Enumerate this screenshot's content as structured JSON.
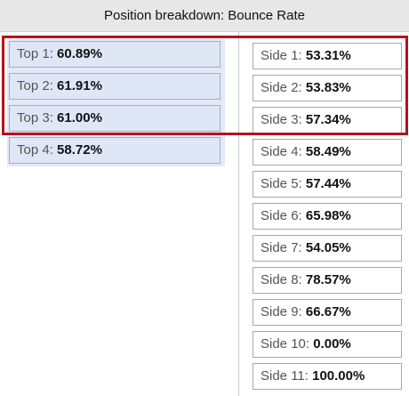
{
  "header": {
    "title": "Position breakdown: Bounce Rate"
  },
  "top_positions": [
    {
      "label": "Top 1:",
      "value": "60.89%"
    },
    {
      "label": "Top 2:",
      "value": "61.91%"
    },
    {
      "label": "Top 3:",
      "value": "61.00%"
    },
    {
      "label": "Top 4:",
      "value": "58.72%"
    }
  ],
  "side_positions": [
    {
      "label": "Side 1:",
      "value": "53.31%"
    },
    {
      "label": "Side 2:",
      "value": "53.83%"
    },
    {
      "label": "Side 3:",
      "value": "57.34%"
    },
    {
      "label": "Side 4:",
      "value": "58.49%"
    },
    {
      "label": "Side 5:",
      "value": "57.44%"
    },
    {
      "label": "Side 6:",
      "value": "65.98%"
    },
    {
      "label": "Side 7:",
      "value": "54.05%"
    },
    {
      "label": "Side 8:",
      "value": "78.57%"
    },
    {
      "label": "Side 9:",
      "value": "66.67%"
    },
    {
      "label": "Side 10:",
      "value": "0.00%"
    },
    {
      "label": "Side 11:",
      "value": "100.00%"
    }
  ],
  "colors": {
    "highlight": "#b3121e",
    "top_background": "#e3e9f7",
    "header_background": "#e7e7e7"
  }
}
